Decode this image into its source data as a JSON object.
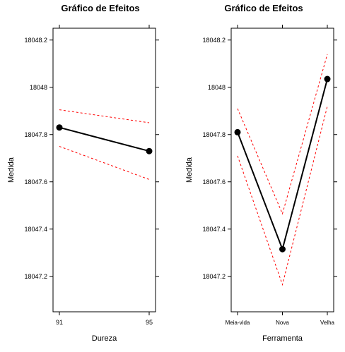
{
  "chart_data": [
    {
      "type": "line",
      "title": "Gráfico de Efeitos",
      "xlabel": "Dureza",
      "ylabel": "Medida",
      "categories": [
        "91",
        "95"
      ],
      "ylim": [
        18047.05,
        18048.25
      ],
      "yticks": [
        18047.2,
        18047.4,
        18047.6,
        18047.8,
        18048,
        18048.2
      ],
      "ytick_labels": [
        "18047.2",
        "18047.4",
        "18047.6",
        "18047.8",
        "18048",
        "18048.2"
      ],
      "series": [
        {
          "role": "mean",
          "color": "#000000",
          "style": "solid",
          "markers": true,
          "values": [
            18047.83,
            18047.73
          ]
        },
        {
          "role": "upper",
          "color": "#ff0000",
          "style": "dashed",
          "markers": false,
          "values": [
            18047.905,
            18047.85
          ]
        },
        {
          "role": "lower",
          "color": "#ff0000",
          "style": "dashed",
          "markers": false,
          "values": [
            18047.75,
            18047.61
          ]
        }
      ]
    },
    {
      "type": "line",
      "title": "Gráfico de Efeitos",
      "xlabel": "Ferramenta",
      "ylabel": "Medida",
      "categories": [
        "Meia-vida",
        "Nova",
        "Velha"
      ],
      "ylim": [
        18047.05,
        18048.25
      ],
      "yticks": [
        18047.2,
        18047.4,
        18047.6,
        18047.8,
        18048,
        18048.2
      ],
      "ytick_labels": [
        "18047.2",
        "18047.4",
        "18047.6",
        "18047.8",
        "18048",
        "18048.2"
      ],
      "series": [
        {
          "role": "mean",
          "color": "#000000",
          "style": "solid",
          "markers": true,
          "values": [
            18047.81,
            18047.315,
            18048.035
          ]
        },
        {
          "role": "upper",
          "color": "#ff0000",
          "style": "dashed",
          "markers": false,
          "values": [
            18047.91,
            18047.465,
            18048.14
          ]
        },
        {
          "role": "lower",
          "color": "#ff0000",
          "style": "dashed",
          "markers": false,
          "values": [
            18047.71,
            18047.165,
            18047.92
          ]
        }
      ]
    }
  ]
}
